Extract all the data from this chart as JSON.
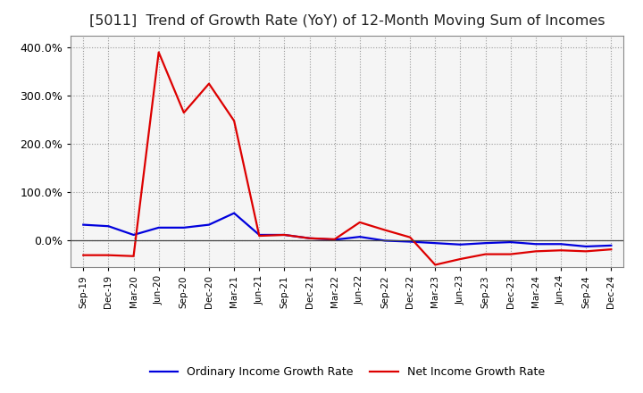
{
  "title": "[5011]  Trend of Growth Rate (YoY) of 12-Month Moving Sum of Incomes",
  "title_fontsize": 11.5,
  "background_color": "#ffffff",
  "plot_bg_color": "#f5f5f5",
  "grid_color": "#999999",
  "x_labels": [
    "Sep-19",
    "Dec-19",
    "Mar-20",
    "Jun-20",
    "Sep-20",
    "Dec-20",
    "Mar-21",
    "Jun-21",
    "Sep-21",
    "Dec-21",
    "Mar-22",
    "Jun-22",
    "Sep-22",
    "Dec-22",
    "Mar-23",
    "Jun-23",
    "Sep-23",
    "Dec-23",
    "Mar-24",
    "Jun-24",
    "Sep-24",
    "Dec-24"
  ],
  "ordinary_income": [
    0.33,
    0.3,
    0.12,
    0.27,
    0.27,
    0.33,
    0.57,
    0.12,
    0.12,
    0.05,
    0.02,
    0.08,
    0.0,
    -0.02,
    -0.05,
    -0.08,
    -0.05,
    -0.03,
    -0.07,
    -0.07,
    -0.12,
    -0.1
  ],
  "net_income": [
    -0.3,
    -0.3,
    -0.32,
    3.9,
    2.65,
    3.25,
    2.48,
    0.1,
    0.12,
    0.05,
    0.03,
    0.38,
    0.22,
    0.07,
    -0.5,
    -0.38,
    -0.28,
    -0.28,
    -0.22,
    -0.2,
    -0.22,
    -0.18
  ],
  "ordinary_color": "#0000dd",
  "net_color": "#dd0000",
  "legend_ordinary": "Ordinary Income Growth Rate",
  "legend_net": "Net Income Growth Rate",
  "linewidth": 1.6,
  "ylim_min": -0.55,
  "ylim_max": 4.25,
  "yticks": [
    0.0,
    1.0,
    2.0,
    3.0,
    4.0
  ],
  "ytick_labels": [
    "0.0%",
    "100.0%",
    "200.0%",
    "300.0%",
    "400.0%"
  ]
}
